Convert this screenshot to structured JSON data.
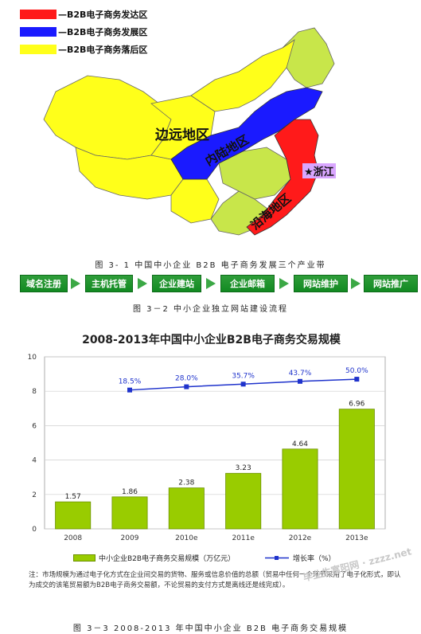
{
  "map": {
    "legend": [
      {
        "label": "—B2B电子商务发达区",
        "color": "#ff1a1a"
      },
      {
        "label": "—B2B电子商务发展区",
        "color": "#1a1aff"
      },
      {
        "label": "—B2B电子商务落后区",
        "color": "#ffff1a"
      }
    ],
    "region_labels": {
      "remote": "边远地区",
      "inland": "内陆地区",
      "coastal": "沿海地区",
      "zhejiang": "★浙江"
    },
    "colors": {
      "developed": "#ff1a1a",
      "developing": "#1a1aff",
      "lagging": "#ffff1a",
      "other": "#c8e64a"
    },
    "caption": "图 3- 1 中国中小企业 B2B 电子商务发展三个产业带"
  },
  "flow": {
    "steps": [
      "域名注册",
      "主机托管",
      "企业建站",
      "企业邮箱",
      "网站维护",
      "网站推广"
    ],
    "caption": "图 3－2 中小企业独立网站建设流程"
  },
  "chart": {
    "title": "2008-2013年中国中小企业B2B电子商务交易规模",
    "note": "注：市场规模为通过电子化方式在企业间交易的货物、服务或信息价值的总额（贸易中任何一个环节采用了电子化形式，即认为成交的该笔贸易额为B2B电子商务交易额，不论贸易的支付方式是离线还是线完成）。",
    "watermark": "毕业生富阳网 · zzzz.net",
    "caption": "图 3－3 2008-2013 年中国中小企业 B2B 电子商务交易规模"
  },
  "chart_data": {
    "type": "bar",
    "categories": [
      "2008",
      "2009",
      "2010e",
      "2011e",
      "2012e",
      "2013e"
    ],
    "series": [
      {
        "name": "中小企业B2B电子商务交易规模（万亿元）",
        "type": "bar",
        "values": [
          1.57,
          1.86,
          2.38,
          3.23,
          4.64,
          6.96
        ],
        "color": "#99cc00"
      },
      {
        "name": "增长率（%）",
        "type": "line",
        "x": [
          "2009",
          "2010e",
          "2011e",
          "2012e",
          "2013e"
        ],
        "values": [
          18.5,
          28.0,
          35.7,
          43.7,
          50.0
        ],
        "labels": [
          "18.5%",
          "28.0%",
          "35.7%",
          "43.7%",
          "50.0%"
        ],
        "color": "#1f33cc"
      }
    ],
    "y_ticks": [
      "0",
      "2",
      "4",
      "6",
      "8",
      "10"
    ],
    "ylim": [
      0,
      10
    ],
    "grid": true,
    "legend_position": "bottom"
  }
}
